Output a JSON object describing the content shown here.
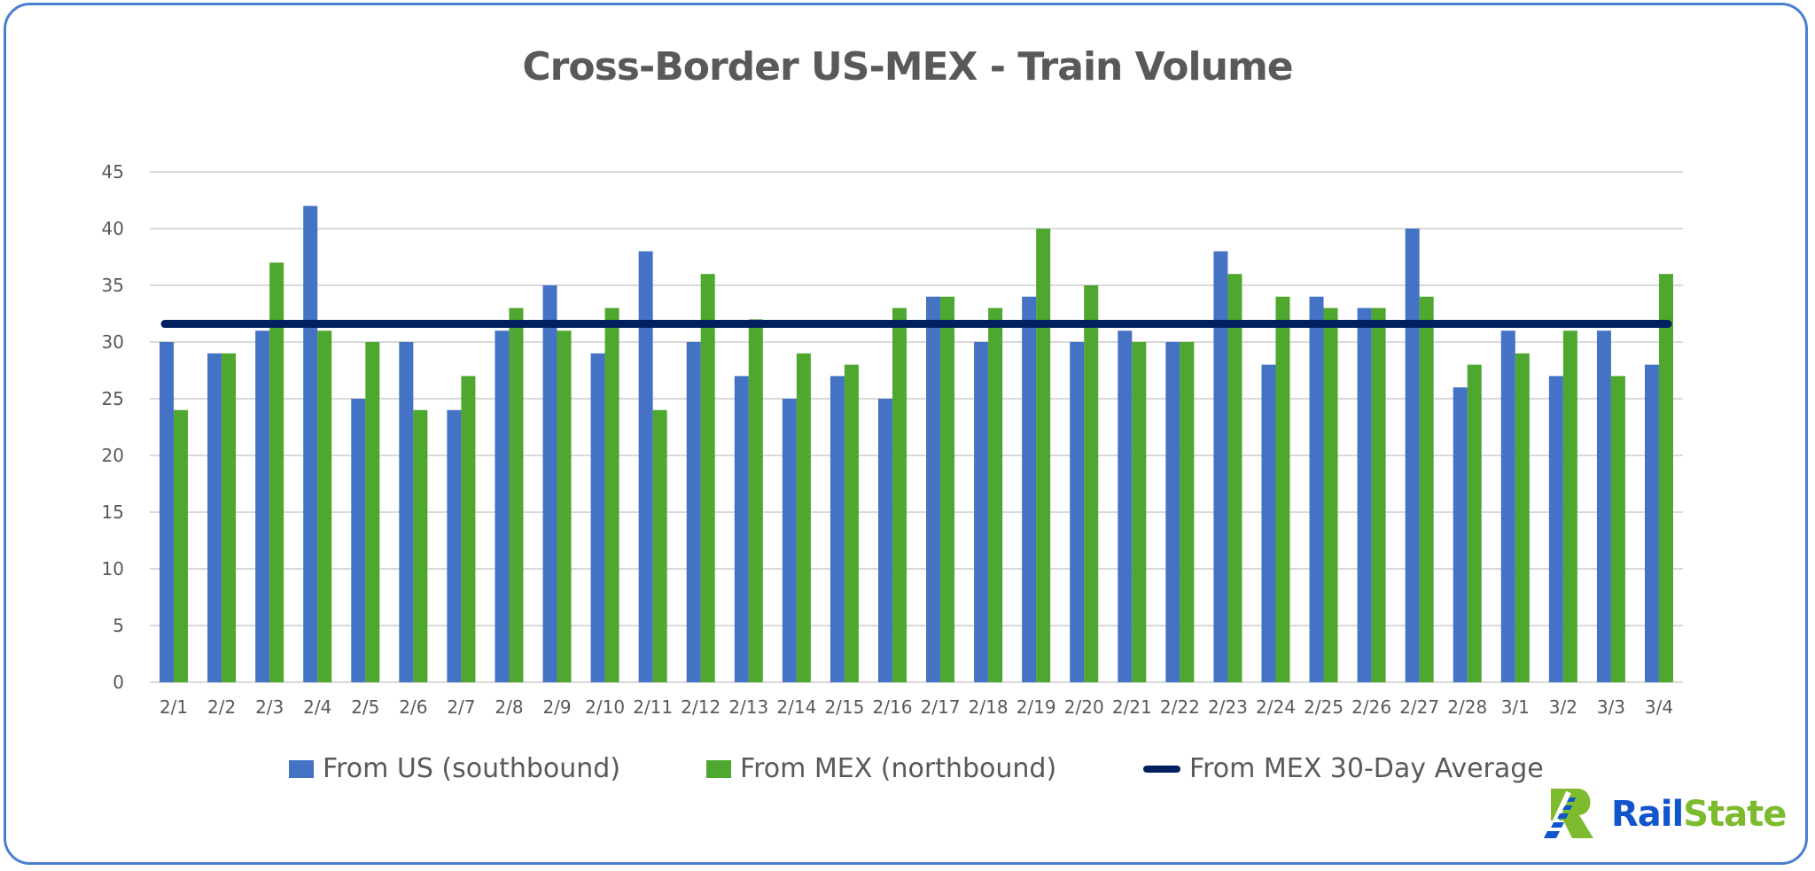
{
  "chart_data": {
    "type": "bar",
    "title": "Cross-Border US-MEX - Train Volume",
    "xlabel": "",
    "ylabel": "",
    "ylim": [
      0,
      45
    ],
    "yticks": [
      "0",
      "5",
      "10",
      "15",
      "20",
      "25",
      "30",
      "35",
      "40",
      "45"
    ],
    "grid": true,
    "legend_position": "bottom",
    "categories": [
      "2/1",
      "2/2",
      "2/3",
      "2/4",
      "2/5",
      "2/6",
      "2/7",
      "2/8",
      "2/9",
      "2/10",
      "2/11",
      "2/12",
      "2/13",
      "2/14",
      "2/15",
      "2/16",
      "2/17",
      "2/18",
      "2/19",
      "2/20",
      "2/21",
      "2/22",
      "2/23",
      "2/24",
      "2/25",
      "2/26",
      "2/27",
      "2/28",
      "3/1",
      "3/2",
      "3/3",
      "3/4"
    ],
    "series": [
      {
        "name": "From US (southbound)",
        "type": "bar",
        "color": "#4472C4",
        "values": [
          30,
          29,
          31,
          42,
          25,
          30,
          24,
          31,
          35,
          29,
          38,
          30,
          27,
          25,
          27,
          25,
          34,
          30,
          34,
          30,
          31,
          30,
          38,
          28,
          34,
          33,
          40,
          26,
          31,
          27,
          31,
          28
        ]
      },
      {
        "name": "From MEX (northbound)",
        "type": "bar",
        "color": "#4EA72E",
        "values": [
          24,
          29,
          37,
          31,
          30,
          24,
          27,
          33,
          31,
          33,
          24,
          36,
          32,
          29,
          28,
          33,
          34,
          33,
          40,
          35,
          30,
          30,
          36,
          34,
          33,
          33,
          34,
          28,
          29,
          31,
          27,
          36
        ]
      },
      {
        "name": "From MEX 30-Day Average",
        "type": "line",
        "color": "#002060",
        "value": 31.6
      }
    ]
  },
  "logo": {
    "part1": "Rail",
    "part2": "State",
    "color1": "#1155CC",
    "color2": "#7DBB2E"
  }
}
